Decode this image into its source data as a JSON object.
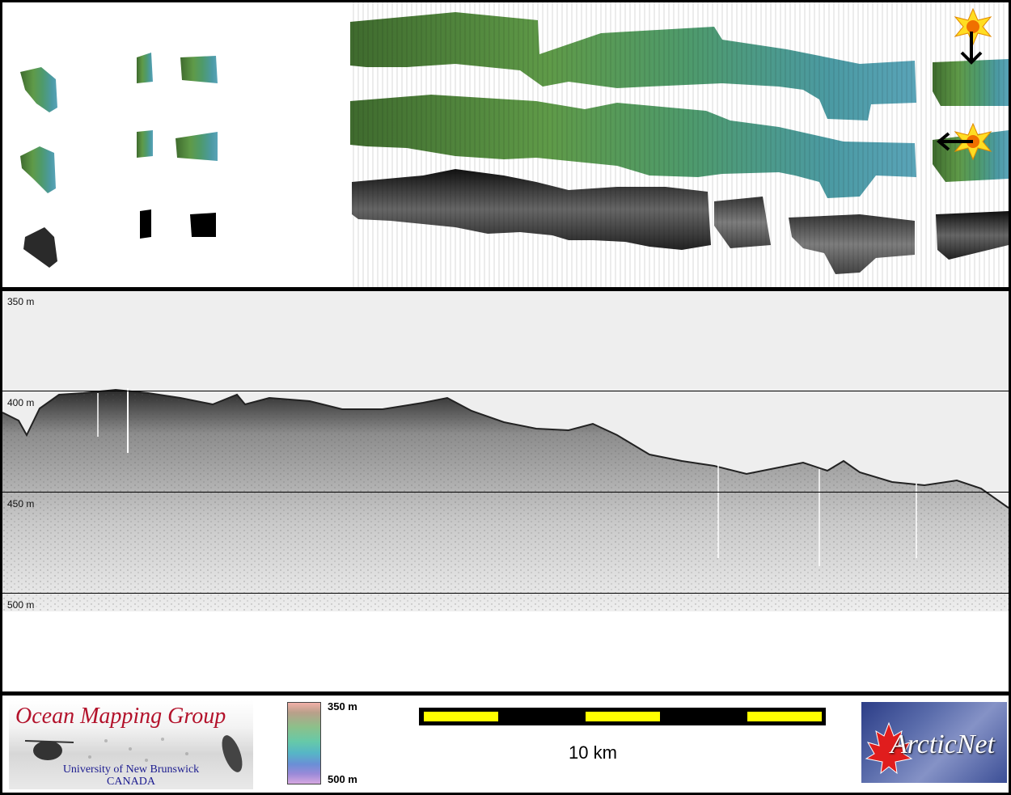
{
  "profile": {
    "depth_labels": [
      "350 m",
      "400 m",
      "450 m",
      "500 m"
    ]
  },
  "footer": {
    "omg_logo": {
      "title": "Ocean Mapping Group",
      "university": "University of New Brunswick",
      "country": "CANADA"
    },
    "color_scale": {
      "top_label": "350 m",
      "bottom_label": "500 m"
    },
    "scale_bar": {
      "label": "10 km"
    },
    "partner_logo": {
      "text": "ArcticNet"
    }
  },
  "icons": [
    "sun-icon",
    "arrow-down-icon",
    "arrow-left-icon"
  ]
}
